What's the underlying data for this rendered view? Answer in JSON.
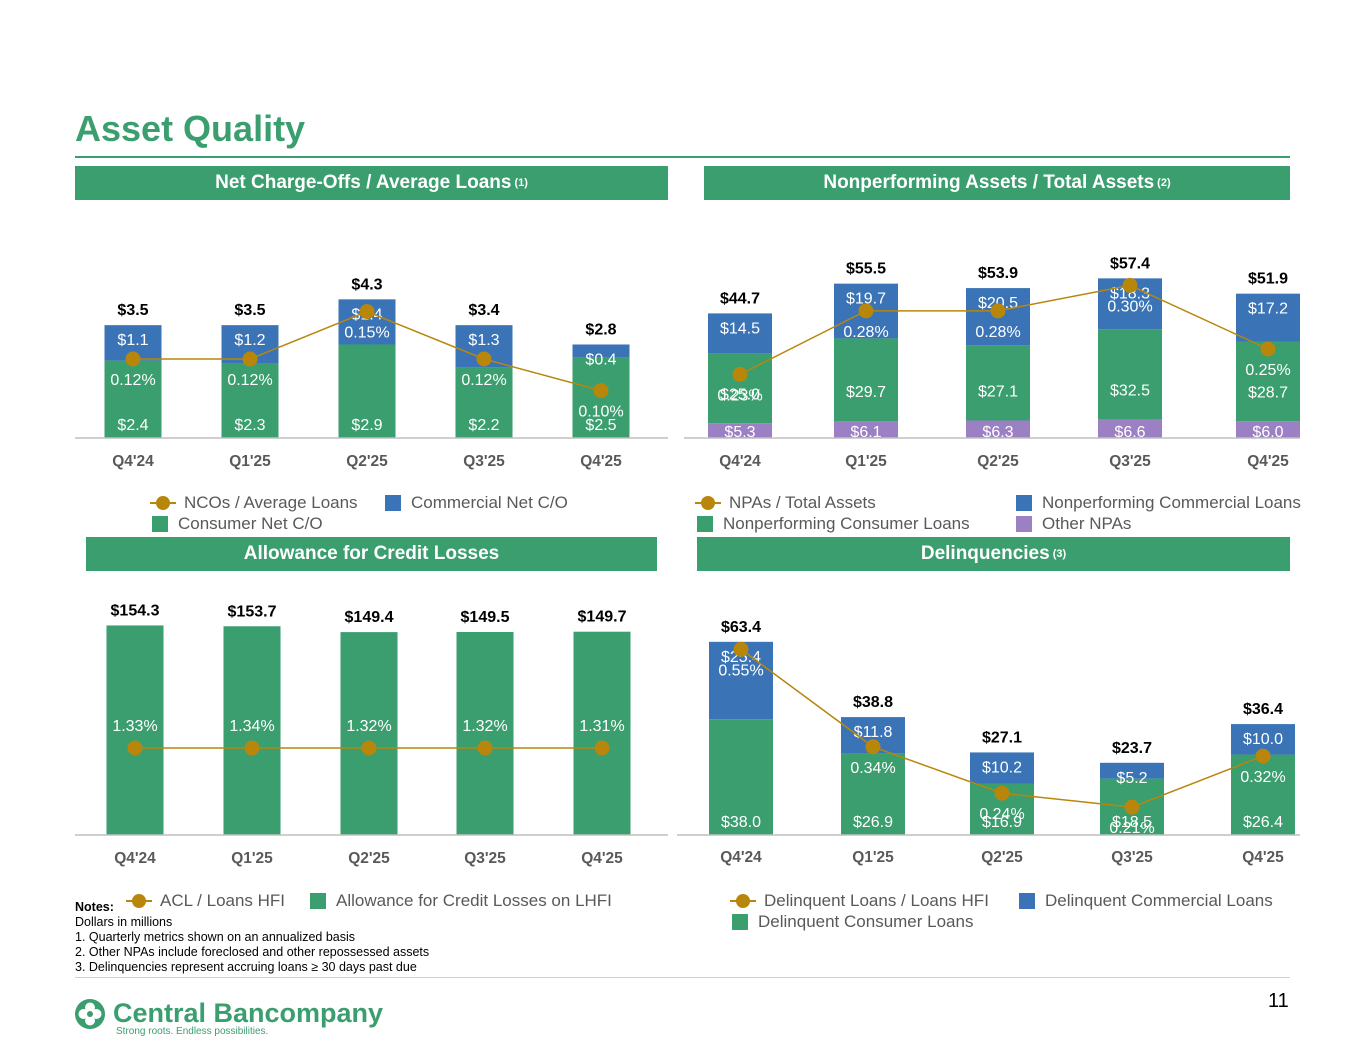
{
  "page": {
    "title": "Asset Quality",
    "page_number": "11"
  },
  "colors": {
    "green": "#3a9e6e",
    "blue": "#3a74b6",
    "purple": "#9b80c4",
    "line": "#b8860b"
  },
  "panels": {
    "nco": {
      "title": "Net Charge-Offs / Average Loans",
      "note_ref": "(1)"
    },
    "npa": {
      "title": "Nonperforming Assets / Total Assets",
      "note_ref": "(2)"
    },
    "acl": {
      "title": "Allowance for Credit Losses"
    },
    "dq": {
      "title": "Delinquencies",
      "note_ref": "(3)"
    }
  },
  "legends": {
    "nco": {
      "line": "NCOs / Average Loans",
      "green": "Consumer Net C/O",
      "blue": "Commercial Net C/O"
    },
    "npa": {
      "line": "NPAs / Total Assets",
      "green": "Nonperforming Consumer Loans",
      "blue": "Nonperforming Commercial Loans",
      "purple": "Other NPAs"
    },
    "acl": {
      "line": "ACL / Loans HFI",
      "green": "Allowance for Credit Losses on LHFI"
    },
    "dq": {
      "line": "Delinquent Loans / Loans HFI",
      "green": "Delinquent Consumer Loans",
      "blue": "Delinquent Commercial Loans"
    }
  },
  "chart_data": [
    {
      "id": "nco",
      "type": "bar",
      "stacked": true,
      "categories": [
        "Q4'24",
        "Q1'25",
        "Q2'25",
        "Q3'25",
        "Q4'25"
      ],
      "series": [
        {
          "name": "Consumer Net C/O",
          "color": "green",
          "values": [
            2.4,
            2.3,
            2.9,
            2.2,
            2.5
          ],
          "labels": [
            "$2.4",
            "$2.3",
            "$2.9",
            "$2.2",
            "$2.5"
          ]
        },
        {
          "name": "Commercial Net C/O",
          "color": "blue",
          "values": [
            1.1,
            1.2,
            1.4,
            1.3,
            0.4
          ],
          "labels": [
            "$1.1",
            "$1.2",
            "$1.4",
            "$1.3",
            "$0.4"
          ]
        }
      ],
      "totals": [
        "$3.5",
        "$3.5",
        "$4.3",
        "$3.4",
        "$2.8"
      ],
      "line": {
        "name": "NCOs / Average Loans",
        "values": [
          0.12,
          0.12,
          0.15,
          0.12,
          0.1
        ],
        "labels": [
          "0.12%",
          "0.12%",
          "0.15%",
          "0.12%",
          "0.10%"
        ],
        "ylim": [
          0.07,
          0.17
        ]
      },
      "ylim": [
        0,
        4.9
      ]
    },
    {
      "id": "npa",
      "type": "bar",
      "stacked": true,
      "categories": [
        "Q4'24",
        "Q1'25",
        "Q2'25",
        "Q3'25",
        "Q4'25"
      ],
      "series": [
        {
          "name": "Other NPAs",
          "color": "purple",
          "values": [
            5.3,
            6.1,
            6.3,
            6.6,
            6.0
          ],
          "labels": [
            "$5.3",
            "$6.1",
            "$6.3",
            "$6.6",
            "$6.0"
          ]
        },
        {
          "name": "Nonperforming Consumer Loans",
          "color": "green",
          "values": [
            25.0,
            29.7,
            27.1,
            32.5,
            28.7
          ],
          "labels": [
            "$25.0",
            "$29.7",
            "$27.1",
            "$32.5",
            "$28.7"
          ]
        },
        {
          "name": "Nonperforming Commercial Loans",
          "color": "blue",
          "values": [
            14.5,
            19.7,
            20.5,
            18.3,
            17.2
          ],
          "labels": [
            "$14.5",
            "$19.7",
            "$20.5",
            "$18.3",
            "$17.2"
          ]
        }
      ],
      "totals": [
        "$44.7",
        "$55.5",
        "$53.9",
        "$57.4",
        "$51.9"
      ],
      "line": {
        "name": "NPAs / Total Assets",
        "values": [
          0.23,
          0.28,
          0.28,
          0.3,
          0.25
        ],
        "labels": [
          "0.23%",
          "0.28%",
          "0.28%",
          "0.30%",
          "0.25%"
        ],
        "ylim": [
          0.18,
          0.32
        ]
      },
      "ylim": [
        0,
        64
      ]
    },
    {
      "id": "acl",
      "type": "bar",
      "stacked": true,
      "categories": [
        "Q4'24",
        "Q1'25",
        "Q2'25",
        "Q3'25",
        "Q4'25"
      ],
      "series": [
        {
          "name": "Allowance for Credit Losses on LHFI",
          "color": "green",
          "values": [
            154.3,
            153.7,
            149.4,
            149.5,
            149.7
          ],
          "labels": [
            "",
            "",
            "",
            "",
            ""
          ]
        }
      ],
      "totals": [
        "$154.3",
        "$153.7",
        "$149.4",
        "$149.5",
        "$149.7"
      ],
      "line": {
        "name": "ACL / Loans HFI",
        "values": [
          1.33,
          1.34,
          1.32,
          1.32,
          1.31
        ],
        "labels": [
          "1.33%",
          "1.34%",
          "1.32%",
          "1.32%",
          "1.31%"
        ],
        "ylim": [
          0,
          2.8
        ]
      },
      "ylim": [
        0,
        162
      ]
    },
    {
      "id": "dq",
      "type": "bar",
      "stacked": true,
      "categories": [
        "Q4'24",
        "Q1'25",
        "Q2'25",
        "Q3'25",
        "Q4'25"
      ],
      "series": [
        {
          "name": "Delinquent Consumer Loans",
          "color": "green",
          "values": [
            38.0,
            26.9,
            16.9,
            18.5,
            26.4
          ],
          "labels": [
            "$38.0",
            "$26.9",
            "$16.9",
            "$18.5",
            "$26.4"
          ]
        },
        {
          "name": "Delinquent Commercial Loans",
          "color": "blue",
          "values": [
            25.4,
            11.8,
            10.2,
            5.2,
            10.0
          ],
          "labels": [
            "$25.4",
            "$11.8",
            "$10.2",
            "$5.2",
            "$10.0"
          ]
        }
      ],
      "totals": [
        "$63.4",
        "$38.8",
        "$27.1",
        "$23.7",
        "$36.4"
      ],
      "line": {
        "name": "Delinquent Loans / Loans HFI",
        "values": [
          0.55,
          0.34,
          0.24,
          0.21,
          0.32
        ],
        "labels": [
          "0.55%",
          "0.34%",
          "0.24%",
          "0.21%",
          "0.32%"
        ],
        "ylim": [
          0.15,
          0.57
        ]
      },
      "ylim": [
        0,
        64
      ]
    }
  ],
  "notes": {
    "heading": "Notes:",
    "lines": [
      "Dollars in millions",
      "1. Quarterly metrics shown on an annualized basis",
      "2. Other NPAs include foreclosed and other repossessed assets",
      "3. Delinquencies represent accruing loans ≥ 30 days past due"
    ]
  },
  "logo": {
    "name": "Central Bancompany",
    "tagline": "Strong roots. Endless possibilities."
  }
}
